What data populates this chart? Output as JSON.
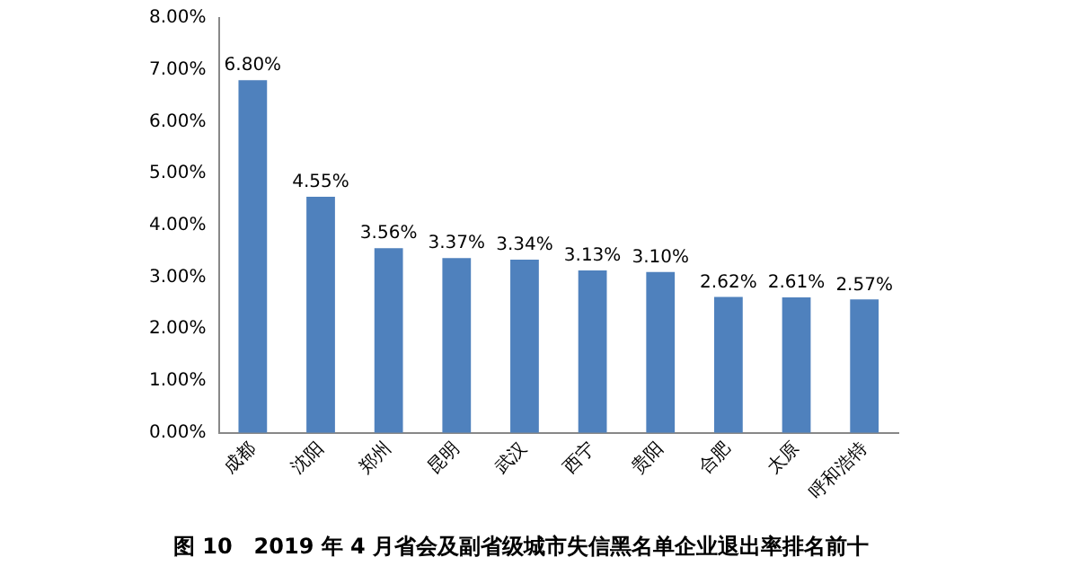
{
  "chart_data": {
    "type": "bar",
    "title": "图 10　2019 年 4 月省会及副省级城市失信黑名单企业退出率排名前十",
    "categories": [
      "成都",
      "沈阳",
      "郑州",
      "昆明",
      "武汉",
      "西宁",
      "贵阳",
      "合肥",
      "太原",
      "呼和浩特"
    ],
    "values": [
      6.8,
      4.55,
      3.56,
      3.37,
      3.34,
      3.13,
      3.1,
      2.62,
      2.61,
      2.57
    ],
    "value_labels": [
      "6.80%",
      "4.55%",
      "3.56%",
      "3.37%",
      "3.34%",
      "3.13%",
      "3.10%",
      "2.62%",
      "2.61%",
      "2.57%"
    ],
    "color": "#4f81bd",
    "ylim": [
      0,
      8
    ],
    "yticks": [
      {
        "value": 0,
        "label": "0.00%"
      },
      {
        "value": 1,
        "label": "1.00%"
      },
      {
        "value": 2,
        "label": "2.00%"
      },
      {
        "value": 3,
        "label": "3.00%"
      },
      {
        "value": 4,
        "label": "4.00%"
      },
      {
        "value": 5,
        "label": "5.00%"
      },
      {
        "value": 6,
        "label": "6.00%"
      },
      {
        "value": 7,
        "label": "7.00%"
      },
      {
        "value": 8,
        "label": "8.00%"
      }
    ]
  }
}
